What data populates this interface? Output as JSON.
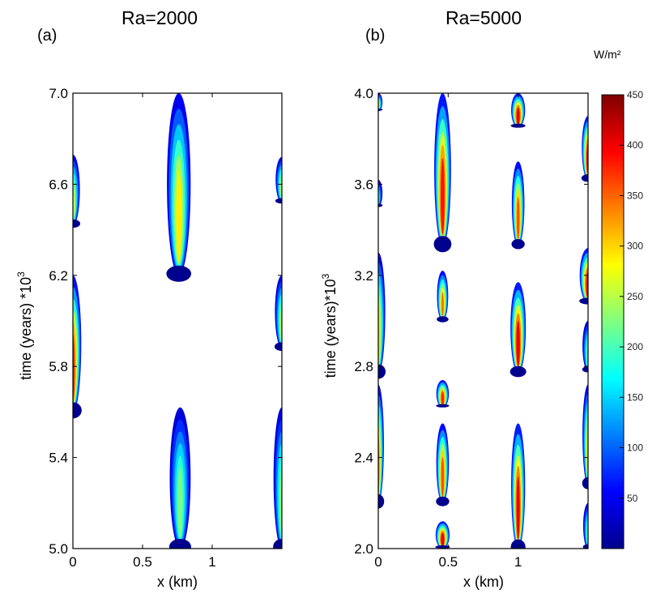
{
  "chart_data": [
    {
      "type": "heatmap",
      "panel_label": "(a)",
      "title": "Ra=2000",
      "xlabel": "x (km)",
      "ylabel": "time (years) *10",
      "ylabel_exp": "3",
      "xlim": [
        0,
        1.5
      ],
      "ylim": [
        5.0,
        7.0
      ],
      "xticks": [
        0,
        0.5,
        1
      ],
      "xtick_labels": [
        "0",
        "0.5",
        "1"
      ],
      "yticks": [
        5.0,
        5.4,
        5.8,
        6.2,
        6.6,
        7.0
      ],
      "ytick_labels": [
        "5.0",
        "5.4",
        "5.8",
        "6.2",
        "6.6",
        "7.0"
      ],
      "plumes": [
        {
          "x": 0.76,
          "t0": 6.2,
          "t1": 7.0,
          "w": 0.085,
          "peak": 320
        },
        {
          "x": 0.77,
          "t0": 5.0,
          "t1": 5.62,
          "w": 0.075,
          "peak": 250
        },
        {
          "x": 0.0,
          "t0": 5.6,
          "t1": 6.2,
          "w": 0.06,
          "peak": 420
        },
        {
          "x": 0.0,
          "t0": 6.42,
          "t1": 6.73,
          "w": 0.05,
          "peak": 300
        },
        {
          "x": 1.5,
          "t0": 5.0,
          "t1": 5.62,
          "w": 0.06,
          "peak": 260
        },
        {
          "x": 1.5,
          "t0": 5.88,
          "t1": 6.2,
          "w": 0.05,
          "peak": 280
        },
        {
          "x": 1.5,
          "t0": 6.52,
          "t1": 6.72,
          "w": 0.045,
          "peak": 280
        }
      ]
    },
    {
      "type": "heatmap",
      "panel_label": "(b)",
      "title": "Ra=5000",
      "xlabel": "x (km)",
      "ylabel": "time (years)*10",
      "ylabel_exp": "3",
      "xlim": [
        0,
        1.5
      ],
      "ylim": [
        2.0,
        4.0
      ],
      "xticks": [
        0,
        0.5,
        1
      ],
      "xtick_labels": [
        "0",
        "0.5",
        "1"
      ],
      "yticks": [
        2.0,
        2.4,
        2.8,
        3.2,
        3.6,
        4.0
      ],
      "ytick_labels": [
        "2.0",
        "2.4",
        "2.8",
        "3.2",
        "3.6",
        "4.0"
      ],
      "plumes": [
        {
          "x": 0.46,
          "t0": 3.33,
          "t1": 4.0,
          "w": 0.06,
          "peak": 430
        },
        {
          "x": 0.46,
          "t0": 3.0,
          "t1": 3.22,
          "w": 0.04,
          "peak": 380
        },
        {
          "x": 0.46,
          "t0": 2.62,
          "t1": 2.74,
          "w": 0.045,
          "peak": 420
        },
        {
          "x": 0.46,
          "t0": 2.2,
          "t1": 2.55,
          "w": 0.045,
          "peak": 400
        },
        {
          "x": 0.46,
          "t0": 2.0,
          "t1": 2.12,
          "w": 0.05,
          "peak": 450
        },
        {
          "x": 1.0,
          "t0": 3.85,
          "t1": 4.0,
          "w": 0.05,
          "peak": 450
        },
        {
          "x": 1.0,
          "t0": 3.33,
          "t1": 3.7,
          "w": 0.045,
          "peak": 400
        },
        {
          "x": 1.0,
          "t0": 2.77,
          "t1": 3.17,
          "w": 0.055,
          "peak": 450
        },
        {
          "x": 1.0,
          "t0": 2.0,
          "t1": 2.55,
          "w": 0.05,
          "peak": 450
        },
        {
          "x": 0.0,
          "t0": 2.77,
          "t1": 3.3,
          "w": 0.05,
          "peak": 330
        },
        {
          "x": 0.0,
          "t0": 2.2,
          "t1": 2.72,
          "w": 0.04,
          "peak": 380
        },
        {
          "x": 0.0,
          "t0": 3.92,
          "t1": 4.0,
          "w": 0.03,
          "peak": 300
        },
        {
          "x": 0.0,
          "t0": 3.5,
          "t1": 3.62,
          "w": 0.03,
          "peak": 200
        },
        {
          "x": 1.5,
          "t0": 3.62,
          "t1": 3.9,
          "w": 0.045,
          "peak": 450
        },
        {
          "x": 1.5,
          "t0": 3.08,
          "t1": 3.32,
          "w": 0.06,
          "peak": 450
        },
        {
          "x": 1.5,
          "t0": 2.78,
          "t1": 3.0,
          "w": 0.04,
          "peak": 250
        },
        {
          "x": 1.5,
          "t0": 2.28,
          "t1": 2.72,
          "w": 0.04,
          "peak": 330
        },
        {
          "x": 1.5,
          "t0": 2.0,
          "t1": 2.2,
          "w": 0.035,
          "peak": 250
        }
      ]
    }
  ],
  "colorbar": {
    "unit": "W/m²",
    "min": 0,
    "max": 450,
    "ticks": [
      50,
      100,
      150,
      200,
      250,
      300,
      350,
      400,
      450
    ],
    "tick_labels": [
      "50",
      "100",
      "150",
      "200",
      "250",
      "300",
      "350",
      "400",
      "450"
    ],
    "colormap": "jet",
    "colors": [
      "#00008f",
      "#0000ff",
      "#0080ff",
      "#00ffff",
      "#80ff80",
      "#ffff00",
      "#ff8000",
      "#ff0000",
      "#800000"
    ]
  }
}
